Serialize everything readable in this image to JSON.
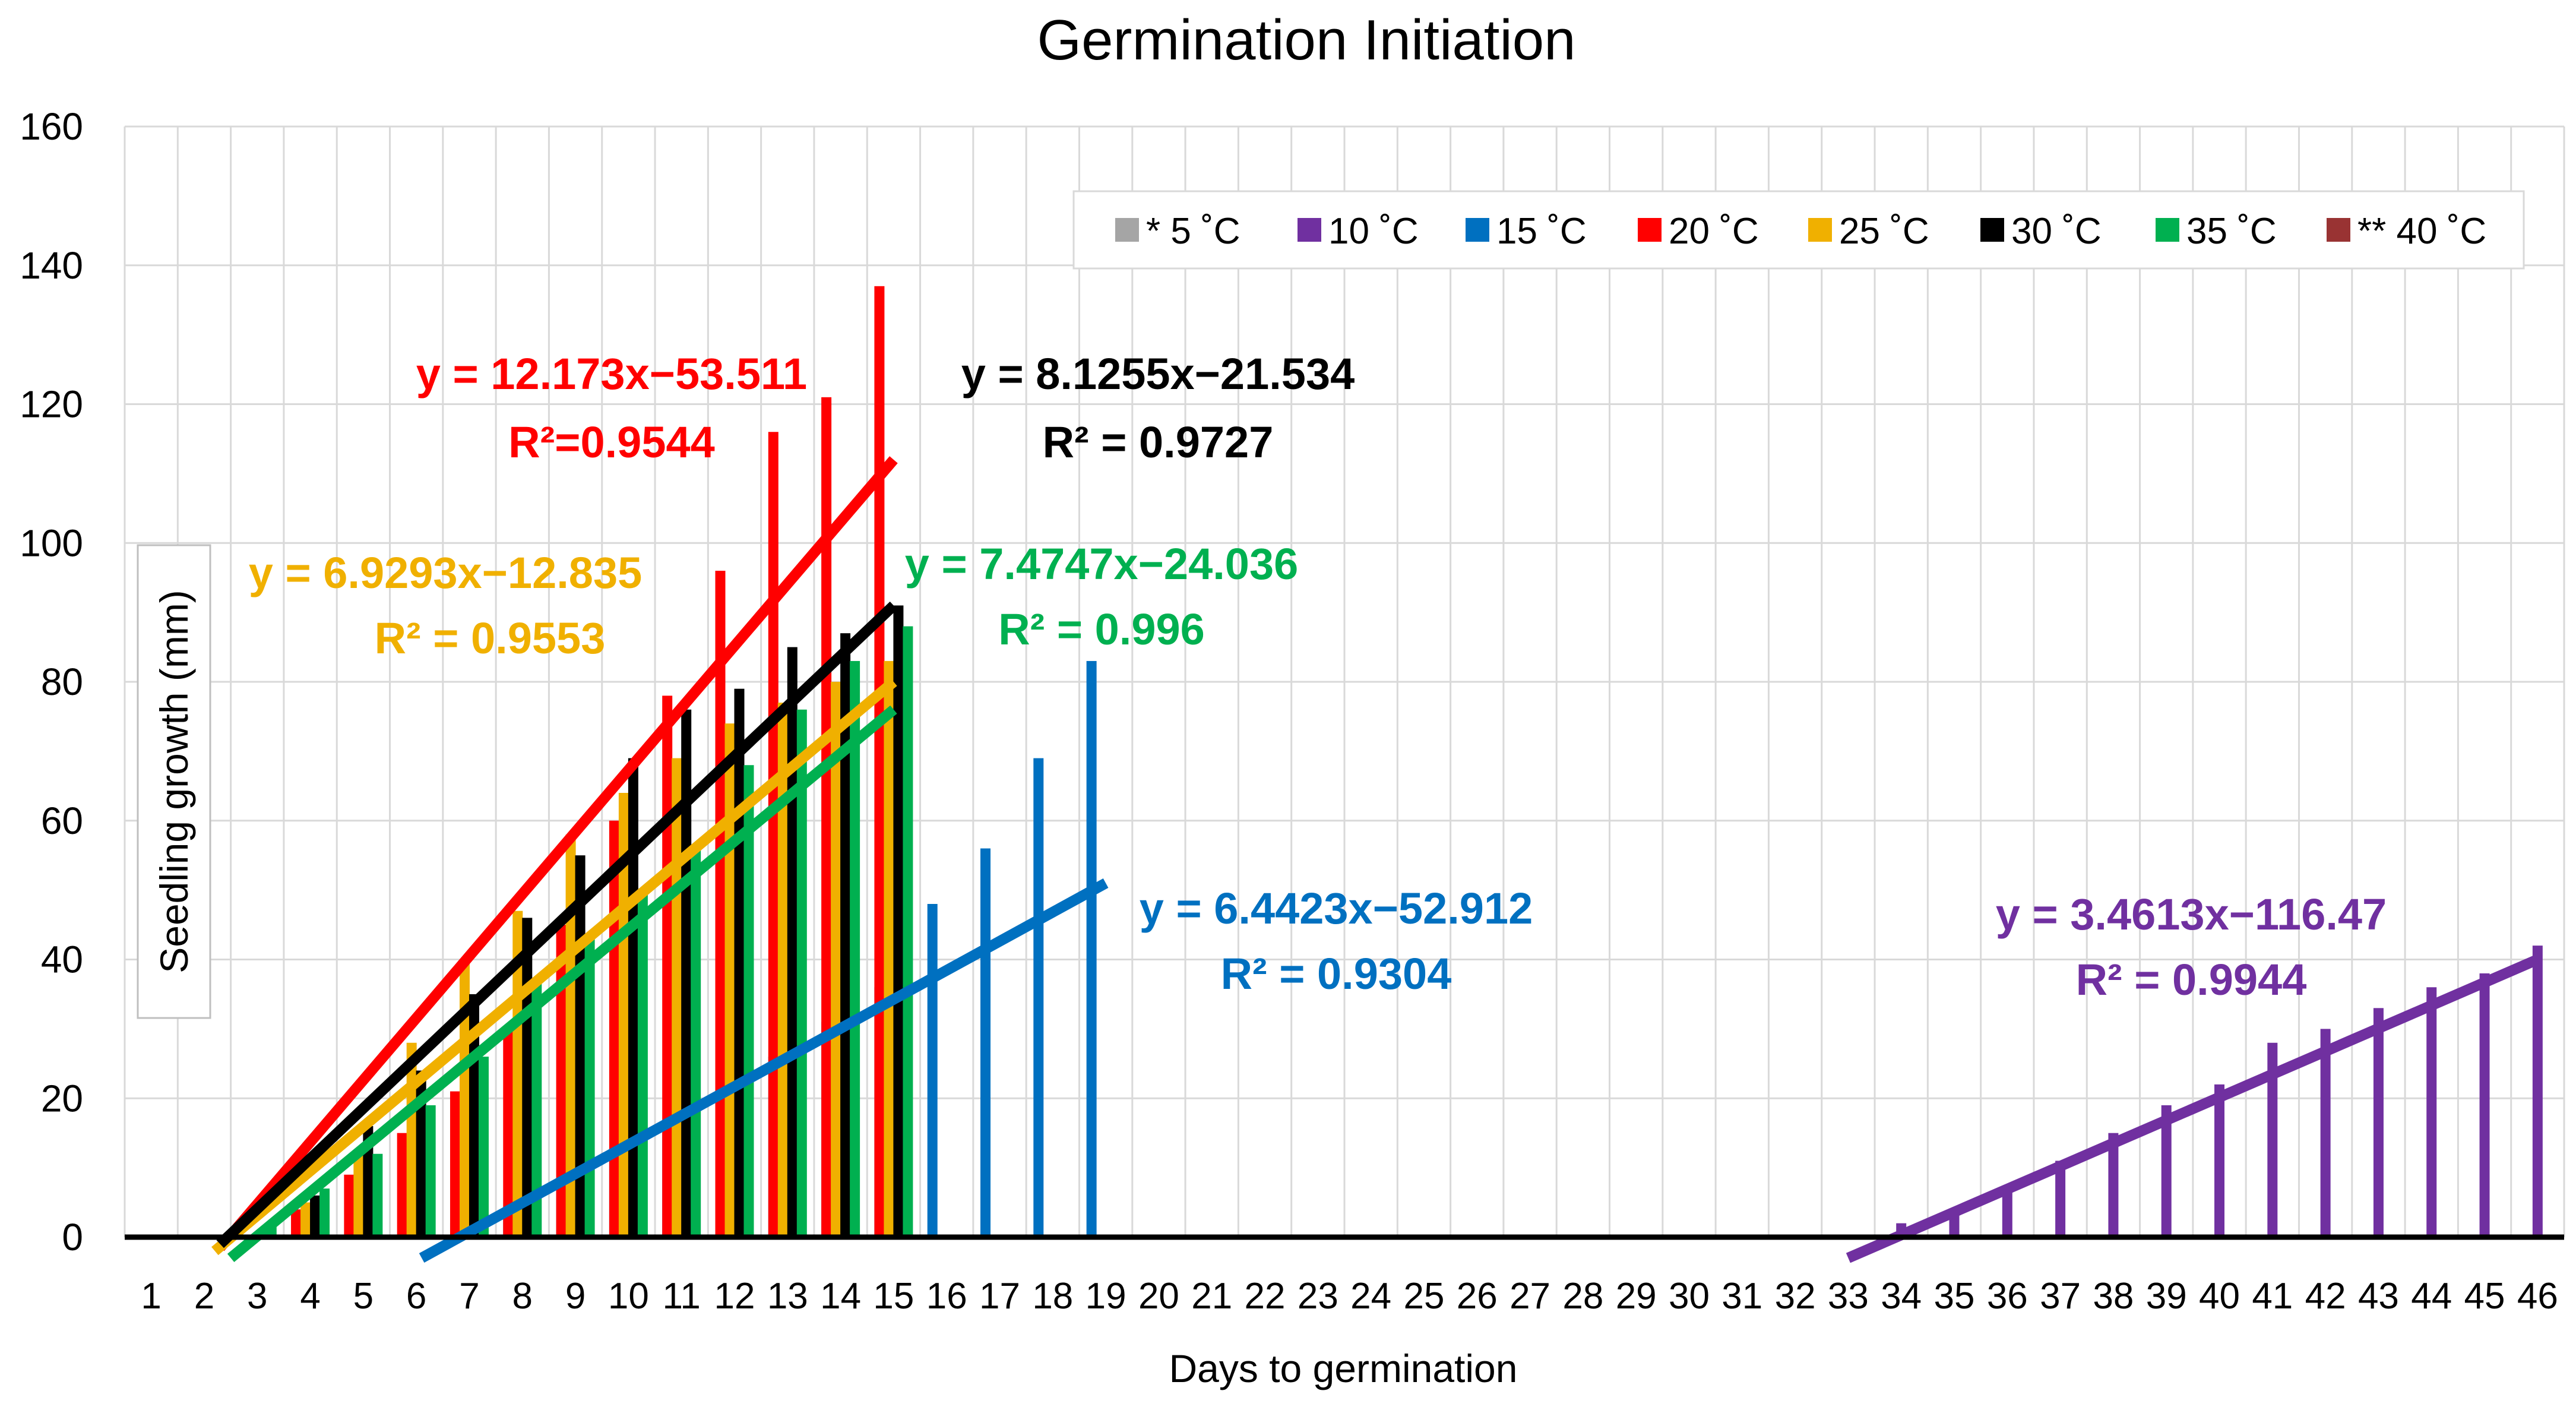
{
  "chart_data": {
    "type": "bar",
    "title": "Germination Initiation",
    "xlabel": "Days to germination",
    "ylabel": "Seedling growth (mm)",
    "ylim": [
      0,
      160
    ],
    "yticks": [
      0,
      20,
      40,
      60,
      80,
      100,
      120,
      140,
      160
    ],
    "categories": [
      "1",
      "2",
      "3",
      "4",
      "5",
      "6",
      "7",
      "8",
      "9",
      "10",
      "11",
      "12",
      "13",
      "14",
      "15",
      "16",
      "17",
      "18",
      "19",
      "20",
      "21",
      "22",
      "23",
      "24",
      "25",
      "26",
      "27",
      "28",
      "29",
      "30",
      "31",
      "32",
      "33",
      "34",
      "35",
      "36",
      "37",
      "38",
      "39",
      "40",
      "41",
      "42",
      "43",
      "44",
      "45",
      "46"
    ],
    "grid": "vertical and horizontal",
    "legend_position": "top-right",
    "legend": [
      {
        "label": "* 5 ˚C",
        "color": "#a5a5a5"
      },
      {
        "label": "10 ˚C",
        "color": "#7030a0"
      },
      {
        "label": "15 ˚C",
        "color": "#0070c0"
      },
      {
        "label": "20 ˚C",
        "color": "#ff0000"
      },
      {
        "label": "25 ˚C",
        "color": "#f0b000"
      },
      {
        "label": "30 ˚C",
        "color": "#000000"
      },
      {
        "label": "35 ˚C",
        "color": "#00b050"
      },
      {
        "label": "** 40 ˚C",
        "color": "#993333"
      }
    ],
    "series": [
      {
        "name": "* 5 ˚C",
        "color": "#a5a5a5",
        "offset": -3,
        "points": []
      },
      {
        "name": "10 ˚C",
        "color": "#7030a0",
        "offset": 0,
        "points": [
          [
            34,
            2
          ],
          [
            35,
            4
          ],
          [
            36,
            7
          ],
          [
            37,
            11
          ],
          [
            38,
            15
          ],
          [
            39,
            19
          ],
          [
            40,
            22
          ],
          [
            41,
            28
          ],
          [
            42,
            30
          ],
          [
            43,
            33
          ],
          [
            44,
            36
          ],
          [
            45,
            38
          ],
          [
            46,
            42
          ]
        ]
      },
      {
        "name": "15 ˚C",
        "color": "#0070c0",
        "offset": -1.5,
        "points": [
          [
            7,
            2
          ],
          [
            8,
            3
          ],
          [
            9,
            7
          ],
          [
            10,
            11
          ],
          [
            11,
            15
          ],
          [
            12,
            20
          ],
          [
            13,
            26
          ],
          [
            14,
            31
          ],
          [
            15,
            36
          ],
          [
            16,
            48
          ],
          [
            17,
            56
          ],
          [
            18,
            69
          ],
          [
            19,
            83
          ]
        ]
      },
      {
        "name": "20 ˚C",
        "color": "#ff0000",
        "offset": -1.5,
        "points": [
          [
            4,
            4
          ],
          [
            5,
            9
          ],
          [
            6,
            15
          ],
          [
            7,
            21
          ],
          [
            8,
            30
          ],
          [
            9,
            45
          ],
          [
            10,
            60
          ],
          [
            11,
            78
          ],
          [
            12,
            96
          ],
          [
            13,
            116
          ],
          [
            14,
            121
          ],
          [
            15,
            137
          ]
        ]
      },
      {
        "name": "25 ˚C",
        "color": "#f0b000",
        "offset": -0.5,
        "points": [
          [
            4,
            5
          ],
          [
            5,
            12
          ],
          [
            6,
            28
          ],
          [
            7,
            40
          ],
          [
            8,
            47
          ],
          [
            9,
            58
          ],
          [
            10,
            64
          ],
          [
            11,
            69
          ],
          [
            12,
            74
          ],
          [
            13,
            77
          ],
          [
            14,
            80
          ],
          [
            15,
            83
          ]
        ]
      },
      {
        "name": "30 ˚C",
        "color": "#000000",
        "offset": 0.5,
        "points": [
          [
            4,
            6
          ],
          [
            5,
            16
          ],
          [
            6,
            24
          ],
          [
            7,
            35
          ],
          [
            8,
            46
          ],
          [
            9,
            55
          ],
          [
            10,
            69
          ],
          [
            11,
            76
          ],
          [
            12,
            79
          ],
          [
            13,
            85
          ],
          [
            14,
            87
          ],
          [
            15,
            91
          ]
        ]
      },
      {
        "name": "35 ˚C",
        "color": "#00b050",
        "offset": 1.5,
        "points": [
          [
            3,
            2
          ],
          [
            4,
            7
          ],
          [
            5,
            12
          ],
          [
            6,
            19
          ],
          [
            7,
            26
          ],
          [
            8,
            37
          ],
          [
            9,
            43
          ],
          [
            10,
            50
          ],
          [
            11,
            56
          ],
          [
            12,
            68
          ],
          [
            13,
            76
          ],
          [
            14,
            83
          ],
          [
            15,
            88
          ]
        ]
      },
      {
        "name": "** 40 ˚C",
        "color": "#993333",
        "offset": 3,
        "points": []
      }
    ],
    "trendlines": [
      {
        "series": "20 ˚C",
        "color": "#ff0000",
        "x": [
          2.3,
          15
        ],
        "y": [
          -1.5,
          112
        ]
      },
      {
        "series": "25 ˚C",
        "color": "#f0b000",
        "x": [
          2.2,
          15
        ],
        "y": [
          -2,
          80
        ]
      },
      {
        "series": "30 ˚C",
        "color": "#000000",
        "x": [
          2.3,
          15
        ],
        "y": [
          -1,
          91
        ]
      },
      {
        "series": "35 ˚C",
        "color": "#00b050",
        "x": [
          2.5,
          15
        ],
        "y": [
          -3,
          76
        ]
      },
      {
        "series": "15 ˚C",
        "color": "#0070c0",
        "x": [
          6.1,
          19
        ],
        "y": [
          -3,
          51
        ]
      },
      {
        "series": "10 ˚C",
        "color": "#7030a0",
        "x": [
          33,
          46
        ],
        "y": [
          -3,
          40
        ]
      }
    ],
    "annotations": [
      {
        "line1": "y = 12.173x−53.511",
        "line2": "R²=0.9544",
        "color": "#ff0000"
      },
      {
        "line1": "y = 8.1255x−21.534",
        "line2": "R² = 0.9727",
        "color": "#000000"
      },
      {
        "line1": "y = 6.9293x−12.835",
        "line2": "R² = 0.9553",
        "color": "#f0b000"
      },
      {
        "line1": "y = 7.4747x−24.036",
        "line2": "R² = 0.996",
        "color": "#00b050"
      },
      {
        "line1": "y = 6.4423x−52.912",
        "line2": "R² = 0.9304",
        "color": "#0070c0"
      },
      {
        "line1": "y = 3.4613x−116.47",
        "line2": "R² = 0.9944",
        "color": "#7030a0"
      }
    ]
  }
}
